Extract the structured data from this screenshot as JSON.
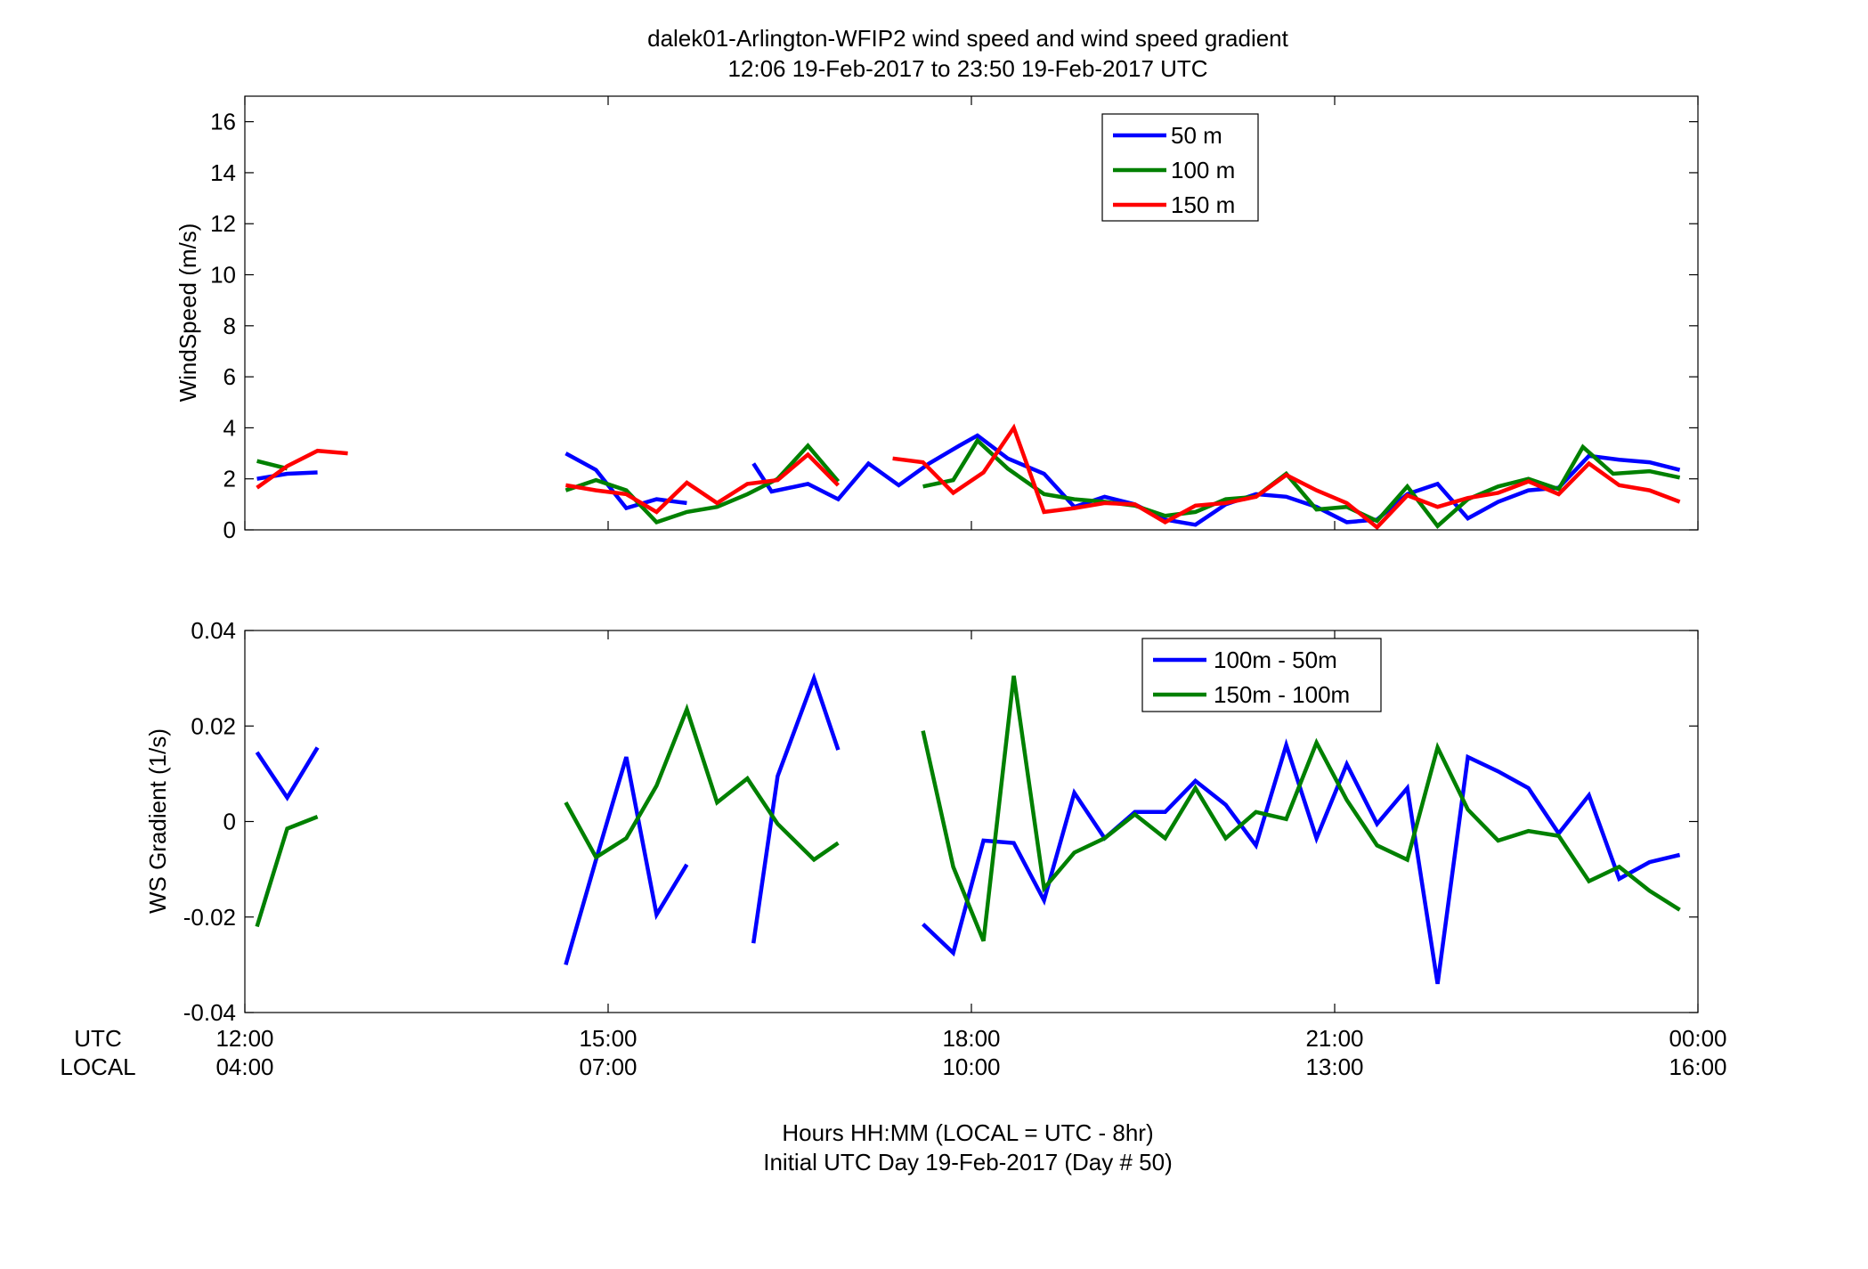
{
  "title_line1": "dalek01-Arlington-WFIP2  wind speed and wind speed gradient",
  "title_line2": "12:06 19-Feb-2017 to 23:50 19-Feb-2017  UTC",
  "xaxis": {
    "row1_label": "UTC",
    "row2_label": "LOCAL",
    "range_hours": [
      12,
      24
    ],
    "ticks": [
      {
        "x": 12,
        "utc": "12:00",
        "local": "04:00"
      },
      {
        "x": 15,
        "utc": "15:00",
        "local": "07:00"
      },
      {
        "x": 18,
        "utc": "18:00",
        "local": "10:00"
      },
      {
        "x": 21,
        "utc": "21:00",
        "local": "13:00"
      },
      {
        "x": 24,
        "utc": "00:00",
        "local": "16:00"
      }
    ],
    "xlabel_line1": "Hours HH:MM  (LOCAL = UTC - 8hr)",
    "xlabel_line2": "Initial UTC Day 19-Feb-2017 (Day # 50)"
  },
  "chart_data": [
    {
      "type": "line",
      "ylabel": "WindSpeed (m/s)",
      "ylim": [
        0,
        17
      ],
      "yticks": [
        0,
        2,
        4,
        6,
        8,
        10,
        12,
        14,
        16
      ],
      "ytick_labels": [
        "0",
        "2",
        "4",
        "6",
        "8",
        "10",
        "12",
        "14",
        "16"
      ],
      "grid": false,
      "legend_position": "top-center-right",
      "series": [
        {
          "name": "50 m",
          "color": "#0000ff",
          "segments": [
            [
              [
                12.1,
                2.0
              ],
              [
                12.35,
                2.2
              ],
              [
                12.6,
                2.25
              ]
            ],
            [
              [
                14.65,
                3.0
              ],
              [
                14.9,
                2.35
              ],
              [
                15.15,
                0.85
              ],
              [
                15.4,
                1.2
              ],
              [
                15.65,
                1.05
              ]
            ],
            [
              [
                16.2,
                2.6
              ],
              [
                16.35,
                1.5
              ],
              [
                16.65,
                1.8
              ],
              [
                16.9,
                1.2
              ],
              [
                17.15,
                2.6
              ],
              [
                17.4,
                1.75
              ],
              [
                17.65,
                2.6
              ],
              [
                17.9,
                3.3
              ],
              [
                18.05,
                3.7
              ],
              [
                18.3,
                2.8
              ],
              [
                18.6,
                2.2
              ],
              [
                18.85,
                0.9
              ],
              [
                19.1,
                1.3
              ],
              [
                19.35,
                1.0
              ],
              [
                19.6,
                0.4
              ],
              [
                19.85,
                0.2
              ],
              [
                20.1,
                1.0
              ],
              [
                20.35,
                1.4
              ],
              [
                20.6,
                1.3
              ],
              [
                20.85,
                0.9
              ],
              [
                21.1,
                0.3
              ],
              [
                21.35,
                0.4
              ],
              [
                21.6,
                1.4
              ],
              [
                21.85,
                1.8
              ],
              [
                22.1,
                0.45
              ],
              [
                22.35,
                1.1
              ],
              [
                22.6,
                1.55
              ],
              [
                22.85,
                1.65
              ],
              [
                23.1,
                2.9
              ],
              [
                23.35,
                2.75
              ],
              [
                23.6,
                2.65
              ],
              [
                23.85,
                2.35
              ]
            ]
          ]
        },
        {
          "name": "100 m",
          "color": "#008000",
          "segments": [
            [
              [
                12.1,
                2.7
              ],
              [
                12.35,
                2.4
              ]
            ],
            [
              [
                14.65,
                1.55
              ],
              [
                14.9,
                1.95
              ],
              [
                15.15,
                1.55
              ],
              [
                15.4,
                0.3
              ],
              [
                15.65,
                0.7
              ],
              [
                15.9,
                0.9
              ],
              [
                16.15,
                1.4
              ],
              [
                16.4,
                2.0
              ],
              [
                16.65,
                3.3
              ],
              [
                16.9,
                1.9
              ]
            ],
            [
              [
                17.6,
                1.7
              ],
              [
                17.85,
                1.95
              ],
              [
                18.05,
                3.5
              ],
              [
                18.3,
                2.4
              ],
              [
                18.6,
                1.4
              ],
              [
                18.85,
                1.2
              ],
              [
                19.1,
                1.1
              ],
              [
                19.35,
                0.95
              ],
              [
                19.6,
                0.55
              ],
              [
                19.85,
                0.7
              ],
              [
                20.1,
                1.2
              ],
              [
                20.35,
                1.3
              ],
              [
                20.6,
                2.2
              ],
              [
                20.85,
                0.8
              ],
              [
                21.1,
                0.9
              ],
              [
                21.35,
                0.35
              ],
              [
                21.6,
                1.7
              ],
              [
                21.85,
                0.15
              ],
              [
                22.1,
                1.2
              ],
              [
                22.35,
                1.7
              ],
              [
                22.6,
                2.0
              ],
              [
                22.85,
                1.6
              ],
              [
                23.05,
                3.25
              ],
              [
                23.3,
                2.2
              ],
              [
                23.6,
                2.3
              ],
              [
                23.85,
                2.05
              ]
            ]
          ]
        },
        {
          "name": "150 m",
          "color": "#ff0000",
          "segments": [
            [
              [
                12.1,
                1.65
              ],
              [
                12.35,
                2.5
              ],
              [
                12.6,
                3.1
              ],
              [
                12.85,
                3.0
              ]
            ],
            [
              [
                14.65,
                1.75
              ],
              [
                14.9,
                1.55
              ],
              [
                15.15,
                1.4
              ],
              [
                15.4,
                0.7
              ],
              [
                15.65,
                1.85
              ],
              [
                15.9,
                1.05
              ],
              [
                16.15,
                1.8
              ],
              [
                16.4,
                1.95
              ],
              [
                16.65,
                2.95
              ],
              [
                16.9,
                1.75
              ]
            ],
            [
              [
                17.35,
                2.8
              ],
              [
                17.6,
                2.65
              ],
              [
                17.85,
                1.45
              ],
              [
                18.1,
                2.25
              ],
              [
                18.35,
                4.0
              ],
              [
                18.6,
                0.7
              ],
              [
                18.85,
                0.85
              ],
              [
                19.1,
                1.05
              ],
              [
                19.35,
                1.0
              ],
              [
                19.6,
                0.3
              ],
              [
                19.85,
                0.95
              ],
              [
                20.1,
                1.05
              ],
              [
                20.35,
                1.3
              ],
              [
                20.6,
                2.15
              ],
              [
                20.85,
                1.55
              ],
              [
                21.1,
                1.05
              ],
              [
                21.35,
                0.1
              ],
              [
                21.6,
                1.35
              ],
              [
                21.85,
                0.9
              ],
              [
                22.1,
                1.25
              ],
              [
                22.35,
                1.45
              ],
              [
                22.6,
                1.9
              ],
              [
                22.85,
                1.4
              ],
              [
                23.1,
                2.6
              ],
              [
                23.35,
                1.75
              ],
              [
                23.6,
                1.55
              ],
              [
                23.85,
                1.1
              ]
            ]
          ]
        }
      ]
    },
    {
      "type": "line",
      "ylabel": "WS Gradient (1/s)",
      "ylim": [
        -0.04,
        0.04
      ],
      "yticks": [
        -0.04,
        -0.02,
        0,
        0.02,
        0.04
      ],
      "ytick_labels": [
        "-0.04",
        "-0.02",
        "0",
        "0.02",
        "0.04"
      ],
      "grid": false,
      "legend_position": "top-center-right",
      "series": [
        {
          "name": "100m - 50m",
          "color": "#0000ff",
          "segments": [
            [
              [
                12.1,
                0.0145
              ],
              [
                12.35,
                0.005
              ],
              [
                12.6,
                0.0155
              ]
            ],
            [
              [
                14.65,
                -0.03
              ],
              [
                14.9,
                -0.008
              ],
              [
                15.15,
                0.0135
              ],
              [
                15.4,
                -0.0195
              ],
              [
                15.65,
                -0.009
              ]
            ],
            [
              [
                16.2,
                -0.0255
              ],
              [
                16.4,
                0.0095
              ],
              [
                16.7,
                0.03
              ],
              [
                16.9,
                0.015
              ]
            ],
            [
              [
                17.6,
                -0.0215
              ],
              [
                17.85,
                -0.0275
              ],
              [
                18.1,
                -0.004
              ],
              [
                18.35,
                -0.0045
              ],
              [
                18.6,
                -0.0165
              ],
              [
                18.85,
                0.006
              ],
              [
                19.1,
                -0.0035
              ],
              [
                19.35,
                0.002
              ],
              [
                19.6,
                0.002
              ],
              [
                19.85,
                0.0085
              ],
              [
                20.1,
                0.0035
              ],
              [
                20.35,
                -0.005
              ],
              [
                20.6,
                0.016
              ],
              [
                20.85,
                -0.0035
              ],
              [
                21.1,
                0.012
              ],
              [
                21.35,
                -0.0005
              ],
              [
                21.6,
                0.007
              ],
              [
                21.85,
                -0.034
              ],
              [
                22.1,
                0.0135
              ],
              [
                22.35,
                0.0105
              ],
              [
                22.6,
                0.007
              ],
              [
                22.85,
                -0.0025
              ],
              [
                23.1,
                0.0055
              ],
              [
                23.35,
                -0.012
              ],
              [
                23.6,
                -0.0085
              ],
              [
                23.85,
                -0.007
              ]
            ]
          ]
        },
        {
          "name": "150m - 100m",
          "color": "#008000",
          "segments": [
            [
              [
                12.1,
                -0.022
              ],
              [
                12.35,
                -0.0015
              ],
              [
                12.6,
                0.001
              ]
            ],
            [
              [
                14.65,
                0.004
              ],
              [
                14.9,
                -0.0075
              ],
              [
                15.15,
                -0.0035
              ],
              [
                15.4,
                0.0075
              ],
              [
                15.65,
                0.0235
              ],
              [
                15.9,
                0.004
              ],
              [
                16.15,
                0.009
              ],
              [
                16.4,
                -0.0005
              ],
              [
                16.7,
                -0.008
              ],
              [
                16.9,
                -0.0045
              ]
            ],
            [
              [
                17.6,
                0.019
              ],
              [
                17.85,
                -0.0095
              ],
              [
                18.1,
                -0.025
              ],
              [
                18.35,
                0.0305
              ],
              [
                18.6,
                -0.014
              ],
              [
                18.85,
                -0.0065
              ],
              [
                19.1,
                -0.0035
              ],
              [
                19.35,
                0.0015
              ],
              [
                19.6,
                -0.0035
              ],
              [
                19.85,
                0.007
              ],
              [
                20.1,
                -0.0035
              ],
              [
                20.35,
                0.002
              ],
              [
                20.6,
                0.0005
              ],
              [
                20.85,
                0.0165
              ],
              [
                21.1,
                0.0045
              ],
              [
                21.35,
                -0.005
              ],
              [
                21.6,
                -0.008
              ],
              [
                21.85,
                0.0155
              ],
              [
                22.1,
                0.0025
              ],
              [
                22.35,
                -0.004
              ],
              [
                22.6,
                -0.002
              ],
              [
                22.85,
                -0.003
              ],
              [
                23.1,
                -0.0125
              ],
              [
                23.35,
                -0.0095
              ],
              [
                23.6,
                -0.0145
              ],
              [
                23.85,
                -0.0185
              ]
            ]
          ]
        }
      ]
    }
  ]
}
